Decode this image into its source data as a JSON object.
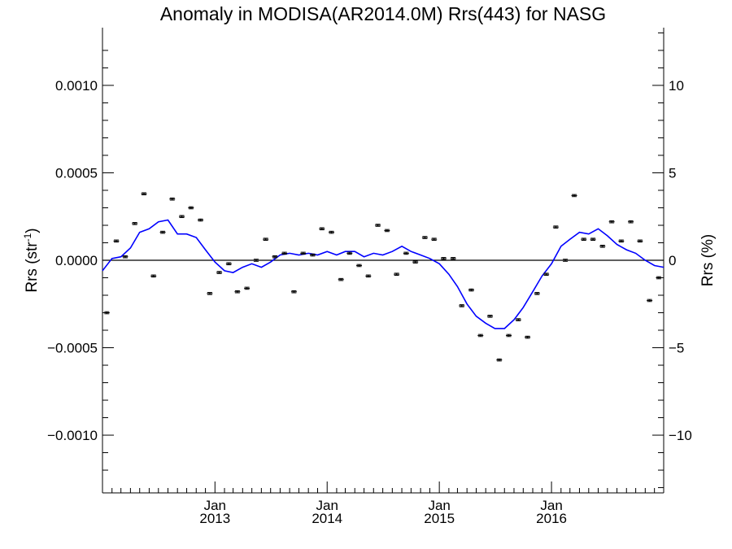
{
  "chart_data": {
    "type": "line",
    "title": "Anomaly in MODISA(AR2014.0M) Rrs(443) for NASG",
    "ylabel_left": "Rrs (str",
    "ylabel_left_sup": "-1",
    "ylabel_left_close": ")",
    "ylabel_right": "Rrs (%)",
    "xlim": [
      "2012-01-01",
      "2016-12-31"
    ],
    "ylim_left": [
      -0.00133,
      0.00133
    ],
    "ylim_right": [
      -13.3,
      13.3
    ],
    "x_ticks": [
      {
        "date": "2013-01-01",
        "month": "Jan",
        "year": "2013"
      },
      {
        "date": "2014-01-01",
        "month": "Jan",
        "year": "2014"
      },
      {
        "date": "2015-01-01",
        "month": "Jan",
        "year": "2015"
      },
      {
        "date": "2016-01-01",
        "month": "Jan",
        "year": "2016"
      }
    ],
    "y_ticks_left": [
      {
        "value": 0.001,
        "label": "0.0010"
      },
      {
        "value": 0.0005,
        "label": "0.0005"
      },
      {
        "value": 0.0,
        "label": "0.0000"
      },
      {
        "value": -0.0005,
        "label": "−0.0005"
      },
      {
        "value": -0.001,
        "label": "−0.0010"
      }
    ],
    "y_ticks_right": [
      {
        "value": 10,
        "label": "10"
      },
      {
        "value": 5,
        "label": "5"
      },
      {
        "value": 0,
        "label": "0"
      },
      {
        "value": -5,
        "label": "−5"
      },
      {
        "value": -10,
        "label": "−10"
      }
    ],
    "zero_line": 0,
    "series": [
      {
        "kind": "points_with_errorbars",
        "color": "#000000",
        "x": [
          "2012-01-15",
          "2012-02-15",
          "2012-03-15",
          "2012-04-15",
          "2012-05-15",
          "2012-06-15",
          "2012-07-15",
          "2012-08-15",
          "2012-09-15",
          "2012-10-15",
          "2012-11-15",
          "2012-12-15",
          "2013-01-15",
          "2013-02-15",
          "2013-03-15",
          "2013-04-15",
          "2013-05-15",
          "2013-06-15",
          "2013-07-15",
          "2013-08-15",
          "2013-09-15",
          "2013-10-15",
          "2013-11-15",
          "2013-12-15",
          "2014-01-15",
          "2014-02-15",
          "2014-03-15",
          "2014-04-15",
          "2014-05-15",
          "2014-06-15",
          "2014-07-15",
          "2014-08-15",
          "2014-09-15",
          "2014-10-15",
          "2014-11-15",
          "2014-12-15",
          "2015-01-15",
          "2015-02-15",
          "2015-03-15",
          "2015-04-15",
          "2015-05-15",
          "2015-06-15",
          "2015-07-15",
          "2015-08-15",
          "2015-09-15",
          "2015-10-15",
          "2015-11-15",
          "2015-12-15",
          "2016-01-15",
          "2016-02-15",
          "2016-03-15",
          "2016-04-15",
          "2016-05-15",
          "2016-06-15",
          "2016-07-15",
          "2016-08-15",
          "2016-09-15",
          "2016-10-15",
          "2016-11-15",
          "2016-12-15"
        ],
        "y": [
          -0.0003,
          0.00011,
          2e-05,
          0.00021,
          0.00038,
          -9e-05,
          0.00016,
          0.00035,
          0.00025,
          0.0003,
          0.00023,
          -0.00019,
          -7e-05,
          -2e-05,
          -0.00018,
          -0.00016,
          0.0,
          0.00012,
          2e-05,
          4e-05,
          -0.00018,
          4e-05,
          3e-05,
          0.00018,
          0.00016,
          -0.00011,
          4e-05,
          -3e-05,
          -9e-05,
          0.0002,
          0.00017,
          -8e-05,
          4e-05,
          -1e-05,
          0.00013,
          0.00012,
          1e-05,
          1e-05,
          -0.00026,
          -0.00017,
          -0.00043,
          -0.00032,
          -0.00057,
          -0.00043,
          -0.00034,
          -0.00044,
          -0.00019,
          -8e-05,
          0.00019,
          0.0,
          0.00037,
          0.00012,
          0.00012,
          8e-05,
          0.00022,
          0.00011,
          0.00022,
          0.00011,
          -0.00023,
          -0.0001
        ],
        "error": 6e-06
      },
      {
        "kind": "line",
        "color": "#0000ff",
        "x": [
          "2012-01-01",
          "2012-02-01",
          "2012-03-01",
          "2012-04-01",
          "2012-05-01",
          "2012-06-01",
          "2012-07-01",
          "2012-08-01",
          "2012-09-01",
          "2012-10-01",
          "2012-11-01",
          "2012-12-01",
          "2013-01-01",
          "2013-02-01",
          "2013-03-01",
          "2013-04-01",
          "2013-05-01",
          "2013-06-01",
          "2013-07-01",
          "2013-08-01",
          "2013-09-01",
          "2013-10-01",
          "2013-11-01",
          "2013-12-01",
          "2014-01-01",
          "2014-02-01",
          "2014-03-01",
          "2014-04-01",
          "2014-05-01",
          "2014-06-01",
          "2014-07-01",
          "2014-08-01",
          "2014-09-01",
          "2014-10-01",
          "2014-11-01",
          "2014-12-01",
          "2015-01-01",
          "2015-02-01",
          "2015-03-01",
          "2015-04-01",
          "2015-05-01",
          "2015-06-01",
          "2015-07-01",
          "2015-08-01",
          "2015-09-01",
          "2015-10-01",
          "2015-11-01",
          "2015-12-01",
          "2016-01-01",
          "2016-02-01",
          "2016-03-01",
          "2016-04-01",
          "2016-05-01",
          "2016-06-01",
          "2016-07-01",
          "2016-08-01",
          "2016-09-01",
          "2016-10-01",
          "2016-11-01",
          "2016-12-01",
          "2016-12-31"
        ],
        "y": [
          -6e-05,
          1e-05,
          2e-05,
          7e-05,
          0.00016,
          0.00018,
          0.00022,
          0.00023,
          0.00015,
          0.00015,
          0.00013,
          6e-05,
          -1e-05,
          -6e-05,
          -7e-05,
          -4e-05,
          -2e-05,
          -4e-05,
          -1e-05,
          3e-05,
          4e-05,
          3e-05,
          4e-05,
          3e-05,
          5e-05,
          3e-05,
          5e-05,
          5e-05,
          2e-05,
          4e-05,
          3e-05,
          5e-05,
          8e-05,
          5e-05,
          3e-05,
          1e-05,
          -2e-05,
          -8e-05,
          -0.00015,
          -0.00025,
          -0.00032,
          -0.00036,
          -0.00039,
          -0.00039,
          -0.00034,
          -0.00027,
          -0.00018,
          -9e-05,
          -2e-05,
          8e-05,
          0.00012,
          0.00016,
          0.00015,
          0.00018,
          0.00014,
          9e-05,
          6e-05,
          4e-05,
          0.0,
          -3e-05,
          -4e-05
        ]
      }
    ]
  }
}
